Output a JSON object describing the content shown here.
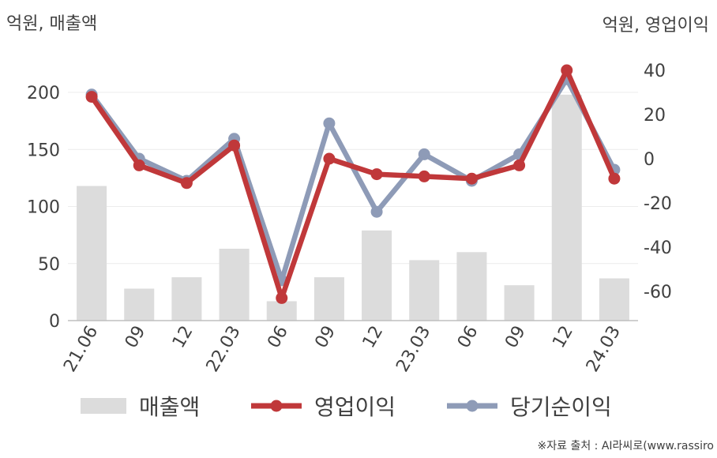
{
  "chart_data": {
    "type": "bar+line",
    "categories": [
      "21.06",
      "09",
      "12",
      "22.03",
      "06",
      "09",
      "12",
      "23.03",
      "06",
      "09",
      "12",
      "24.03"
    ],
    "left_axis": {
      "title": "억원, 매출액",
      "ylim": [
        0,
        220
      ],
      "ticks": [
        0,
        50,
        100,
        150,
        200
      ]
    },
    "right_axis": {
      "title": "억원, 영업이익",
      "ylim": [
        -72,
        44
      ],
      "ticks": [
        40,
        20,
        0,
        -20,
        -40,
        -60
      ]
    },
    "series": [
      {
        "name": "매출액",
        "type": "bar",
        "axis": "left",
        "color": "#dcdcdc",
        "values": [
          118,
          28,
          38,
          63,
          17,
          38,
          79,
          53,
          60,
          31,
          198,
          37
        ]
      },
      {
        "name": "영업이익",
        "type": "line",
        "axis": "right",
        "color": "#c0383a",
        "values": [
          28,
          -3,
          -11,
          6,
          -63,
          0,
          -7,
          -8,
          -9,
          -3,
          40,
          -9
        ]
      },
      {
        "name": "당기순이익",
        "type": "line",
        "axis": "right",
        "color": "#8e9bb7",
        "values": [
          29,
          0,
          -10,
          9,
          -55,
          16,
          -24,
          2,
          -10,
          2,
          36,
          -5
        ]
      }
    ],
    "grid": true,
    "legend_position": "bottom"
  },
  "source_note": "※자료 출처 : AI라씨로(www.rassiro"
}
